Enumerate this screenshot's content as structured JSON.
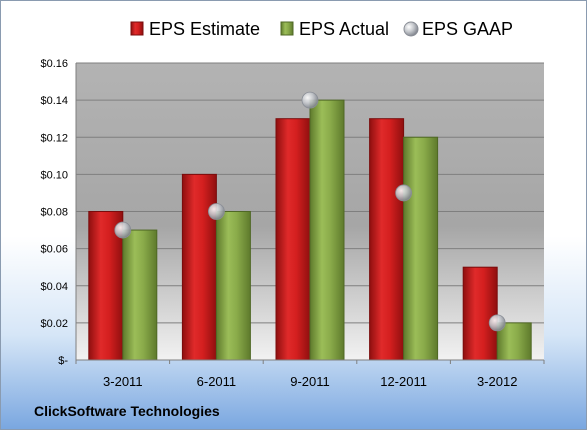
{
  "company": "ClickSoftware Technologies",
  "chart_data": {
    "type": "bar",
    "title": "",
    "xlabel": "",
    "ylabel": "",
    "categories": [
      "3-2011",
      "6-2011",
      "9-2011",
      "12-2011",
      "3-2012"
    ],
    "ylim": [
      0,
      0.16
    ],
    "yticks": [
      {
        "value": 0,
        "label": "$-"
      },
      {
        "value": 0.02,
        "label": "$0.02"
      },
      {
        "value": 0.04,
        "label": "$0.04"
      },
      {
        "value": 0.06,
        "label": "$0.06"
      },
      {
        "value": 0.08,
        "label": "$0.08"
      },
      {
        "value": 0.1,
        "label": "$0.10"
      },
      {
        "value": 0.12,
        "label": "$0.12"
      },
      {
        "value": 0.14,
        "label": "$0.14"
      },
      {
        "value": 0.16,
        "label": "$0.16"
      }
    ],
    "grid": true,
    "legend_position": "top",
    "series": [
      {
        "name": "EPS Estimate",
        "kind": "bar",
        "color": "#cc1f1f",
        "values": [
          0.08,
          0.1,
          0.13,
          0.13,
          0.05
        ]
      },
      {
        "name": "EPS Actual",
        "kind": "bar",
        "color": "#8aab4a",
        "values": [
          0.07,
          0.08,
          0.14,
          0.12,
          0.02
        ]
      },
      {
        "name": "EPS GAAP",
        "kind": "marker",
        "color": "#b8bcc4",
        "values": [
          0.07,
          0.08,
          0.14,
          0.09,
          0.02
        ]
      }
    ]
  }
}
